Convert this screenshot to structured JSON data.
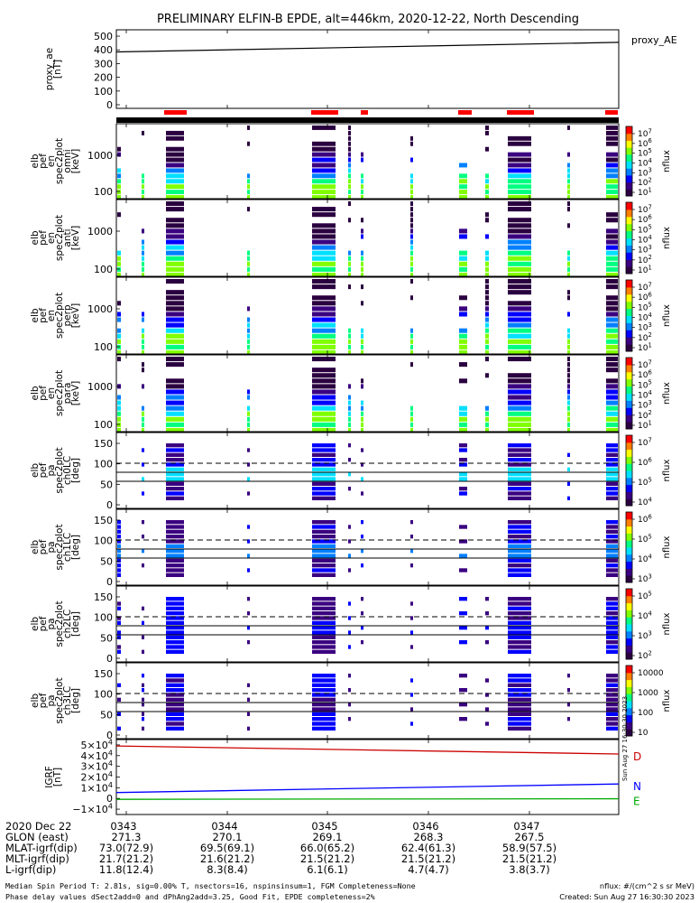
{
  "title": "PRELIMINARY ELFIN-B EPDE, alt=446km, 2020-12-22, North Descending",
  "colors": {
    "ae_line": "#000000",
    "status_red": "#ff0000",
    "igrf_d": "#cc0000",
    "igrf_n": "#0000ff",
    "igrf_e": "#00aa00",
    "colorbar": [
      "#2a0040",
      "#3a0080",
      "#0000ff",
      "#0080ff",
      "#00e0ff",
      "#00ff80",
      "#80ff00",
      "#ffff00",
      "#ff8000",
      "#ff0000"
    ]
  },
  "chart_data": [
    {
      "type": "line",
      "ylabel": "proxy_ae\n[nT]",
      "legend": "proxy_AE",
      "yticks": [
        "500",
        "400",
        "300",
        "200",
        "100",
        "0"
      ],
      "ylim": [
        0,
        520
      ],
      "x": [
        0,
        1
      ],
      "values": [
        385,
        455
      ]
    },
    {
      "type": "heatmap",
      "ylabel": "elb\npef\nen\nspec2plot\nomni\n[keV]",
      "yticks": [
        "1000",
        "100"
      ],
      "cbar_ticks": [
        "10^7",
        "10^6",
        "10^5",
        "10^4",
        "10^3",
        "10^2",
        "10^1"
      ],
      "cbar_label": "nflux"
    },
    {
      "type": "heatmap",
      "ylabel": "elb\npef\nen\nspec2plot\nanti\n[keV]",
      "yticks": [
        "1000",
        "100"
      ],
      "cbar_ticks": [
        "10^7",
        "10^6",
        "10^5",
        "10^4",
        "10^3",
        "10^2",
        "10^1"
      ],
      "cbar_label": "nflux"
    },
    {
      "type": "heatmap",
      "ylabel": "elb\npef\nen\nspec2plot\nperp\n[keV]",
      "yticks": [
        "1000",
        "100"
      ],
      "cbar_ticks": [
        "10^7",
        "10^6",
        "10^5",
        "10^4",
        "10^3",
        "10^2",
        "10^1"
      ],
      "cbar_label": "nflux"
    },
    {
      "type": "heatmap",
      "ylabel": "elb\npef\nen\nspec2plot\npara\n[keV]",
      "yticks": [
        "1000",
        "100"
      ],
      "cbar_ticks": [
        "10^7",
        "10^6",
        "10^5",
        "10^4",
        "10^3",
        "10^2",
        "10^1"
      ],
      "cbar_label": "nflux"
    },
    {
      "type": "heatmap",
      "ylabel": "elb\npef\npa\nspec2plot\nch0LC\n[deg]",
      "yticks": [
        "150",
        "100",
        "50",
        "0"
      ],
      "cbar_ticks": [
        "10^7",
        "10^6",
        "10^5",
        "10^4"
      ],
      "cbar_label": "nflux"
    },
    {
      "type": "heatmap",
      "ylabel": "elb\npef\npa\nspec2plot\nch1LC\n[deg]",
      "yticks": [
        "150",
        "100",
        "50",
        "0"
      ],
      "cbar_ticks": [
        "10^6",
        "10^5",
        "10^4",
        "10^3"
      ],
      "cbar_label": "nflux"
    },
    {
      "type": "heatmap",
      "ylabel": "elb\npef\npa\nspec2plot\nch2LC\n[deg]",
      "yticks": [
        "150",
        "100",
        "50",
        "0"
      ],
      "cbar_ticks": [
        "10^5",
        "10^4",
        "10^3",
        "10^2"
      ],
      "cbar_label": "nflux"
    },
    {
      "type": "heatmap",
      "ylabel": "elb\npef\npa\nspec2plot\nch3LC\n[deg]",
      "yticks": [
        "150",
        "100",
        "50",
        "0"
      ],
      "cbar_ticks": [
        "10000",
        "1000",
        "100",
        "10"
      ],
      "cbar_label": "nflux"
    },
    {
      "type": "line",
      "ylabel": "IGRF\n[nT]",
      "yticks": [
        "5×10^4",
        "4×10^4",
        "3×10^4",
        "2×10^4",
        "1×10^4",
        "0",
        "−1×10^4"
      ],
      "ylim": [
        -15000,
        55000
      ],
      "series": [
        {
          "name": "D",
          "x": [
            0,
            1
          ],
          "values": [
            49000,
            41500
          ]
        },
        {
          "name": "N",
          "x": [
            0,
            1
          ],
          "values": [
            5500,
            13500
          ]
        },
        {
          "name": "E",
          "x": [
            0,
            1
          ],
          "values": [
            -800,
            -300
          ]
        }
      ]
    }
  ],
  "xaxis": {
    "times": [
      "0343",
      "0344",
      "0345",
      "0346",
      "0347"
    ],
    "rows": [
      {
        "label": "2020 Dec 22",
        "values": [
          "0343",
          "0344",
          "0345",
          "0346",
          "0347"
        ]
      },
      {
        "label": "GLON (east)",
        "values": [
          "271.3",
          "270.1",
          "269.1",
          "268.3",
          "267.5"
        ]
      },
      {
        "label": "MLAT-igrf(dip)",
        "values": [
          "73.0(72.9)",
          "69.5(69.1)",
          "66.0(65.2)",
          "62.4(61.3)",
          "58.9(57.5)"
        ]
      },
      {
        "label": "MLT-igrf(dip)",
        "values": [
          "21.7(21.2)",
          "21.6(21.2)",
          "21.5(21.2)",
          "21.5(21.2)",
          "21.5(21.2)"
        ]
      },
      {
        "label": "L-igrf(dip)",
        "values": [
          "11.8(12.4)",
          "8.3(8.4)",
          "6.1(6.1)",
          "4.7(4.7)",
          "3.8(3.7)"
        ]
      }
    ]
  },
  "stamp": "Sun Aug 27 16:30:30 2023",
  "footer": {
    "left1": "Median Spin Period T: 2.81s, sig=0.00% T, nsectors=16, nspinsinsum=1, FGM Completeness=None",
    "left2": "Phase delay values dSect2add=0 and dPhAng2add=3.25, Good Fit, EPDE completeness=2%",
    "right1": "nflux: #/(cm^2 s sr MeV)",
    "right2": "Created: Sun Aug 27 16:30:30 2023"
  }
}
